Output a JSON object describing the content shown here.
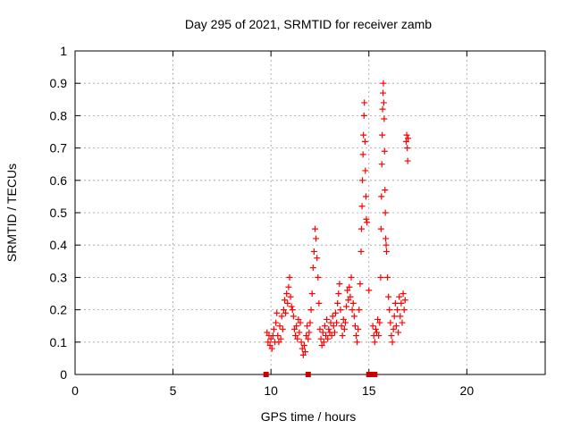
{
  "chart_data": {
    "type": "scatter",
    "title": "Day 295 of 2021, SRMTID for receiver zamb",
    "xlabel": "GPS time / hours",
    "ylabel": "SRMTID / TECUs",
    "xlim": [
      0,
      24
    ],
    "ylim": [
      0,
      1
    ],
    "xticks": [
      0,
      5,
      10,
      15,
      20
    ],
    "yticks": [
      0,
      0.1,
      0.2,
      0.3,
      0.4,
      0.5,
      0.6,
      0.7,
      0.8,
      0.9,
      1
    ],
    "xtick_labels": [
      "0",
      "5",
      "10",
      "15",
      "20"
    ],
    "ytick_labels": [
      "0",
      "0.1",
      "0.2",
      "0.3",
      "0.4",
      "0.5",
      "0.6",
      "0.7",
      "0.8",
      "0.9",
      "1"
    ],
    "grid": true,
    "marker": "+",
    "color": "#ff0000",
    "zero_marker_color": "#cc0000",
    "zero_points": [
      {
        "x": 9.75,
        "y": 0
      },
      {
        "x": 11.9,
        "y": 0
      },
      {
        "x": 15.0,
        "y": 0
      },
      {
        "x": 15.15,
        "y": 0
      },
      {
        "x": 15.3,
        "y": 0
      }
    ],
    "points": [
      {
        "x": 9.8,
        "y": 0.13
      },
      {
        "x": 9.85,
        "y": 0.1
      },
      {
        "x": 9.9,
        "y": 0.12
      },
      {
        "x": 9.95,
        "y": 0.09
      },
      {
        "x": 10.0,
        "y": 0.11
      },
      {
        "x": 10.05,
        "y": 0.08
      },
      {
        "x": 10.1,
        "y": 0.12
      },
      {
        "x": 10.15,
        "y": 0.14
      },
      {
        "x": 10.2,
        "y": 0.1
      },
      {
        "x": 10.25,
        "y": 0.16
      },
      {
        "x": 10.3,
        "y": 0.19
      },
      {
        "x": 10.35,
        "y": 0.12
      },
      {
        "x": 10.4,
        "y": 0.1
      },
      {
        "x": 10.45,
        "y": 0.15
      },
      {
        "x": 10.5,
        "y": 0.11
      },
      {
        "x": 10.55,
        "y": 0.18
      },
      {
        "x": 10.6,
        "y": 0.14
      },
      {
        "x": 10.65,
        "y": 0.2
      },
      {
        "x": 10.7,
        "y": 0.23
      },
      {
        "x": 10.75,
        "y": 0.19
      },
      {
        "x": 10.8,
        "y": 0.25
      },
      {
        "x": 10.85,
        "y": 0.22
      },
      {
        "x": 10.9,
        "y": 0.27
      },
      {
        "x": 10.95,
        "y": 0.3
      },
      {
        "x": 11.0,
        "y": 0.24
      },
      {
        "x": 11.05,
        "y": 0.21
      },
      {
        "x": 11.1,
        "y": 0.2
      },
      {
        "x": 11.15,
        "y": 0.18
      },
      {
        "x": 11.2,
        "y": 0.14
      },
      {
        "x": 11.25,
        "y": 0.12
      },
      {
        "x": 11.3,
        "y": 0.15
      },
      {
        "x": 11.35,
        "y": 0.11
      },
      {
        "x": 11.4,
        "y": 0.17
      },
      {
        "x": 11.45,
        "y": 0.13
      },
      {
        "x": 11.5,
        "y": 0.16
      },
      {
        "x": 11.55,
        "y": 0.1
      },
      {
        "x": 11.6,
        "y": 0.08
      },
      {
        "x": 11.65,
        "y": 0.06
      },
      {
        "x": 11.7,
        "y": 0.09
      },
      {
        "x": 11.75,
        "y": 0.07
      },
      {
        "x": 11.8,
        "y": 0.12
      },
      {
        "x": 11.85,
        "y": 0.15
      },
      {
        "x": 11.9,
        "y": 0.11
      },
      {
        "x": 11.95,
        "y": 0.13
      },
      {
        "x": 12.0,
        "y": 0.16
      },
      {
        "x": 12.05,
        "y": 0.2
      },
      {
        "x": 12.1,
        "y": 0.25
      },
      {
        "x": 12.15,
        "y": 0.33
      },
      {
        "x": 12.2,
        "y": 0.38
      },
      {
        "x": 12.25,
        "y": 0.45
      },
      {
        "x": 12.3,
        "y": 0.42
      },
      {
        "x": 12.35,
        "y": 0.36
      },
      {
        "x": 12.4,
        "y": 0.3
      },
      {
        "x": 12.45,
        "y": 0.22
      },
      {
        "x": 12.5,
        "y": 0.14
      },
      {
        "x": 12.55,
        "y": 0.11
      },
      {
        "x": 12.6,
        "y": 0.09
      },
      {
        "x": 12.65,
        "y": 0.13
      },
      {
        "x": 12.7,
        "y": 0.1
      },
      {
        "x": 12.75,
        "y": 0.15
      },
      {
        "x": 12.8,
        "y": 0.12
      },
      {
        "x": 12.85,
        "y": 0.17
      },
      {
        "x": 12.9,
        "y": 0.11
      },
      {
        "x": 12.95,
        "y": 0.14
      },
      {
        "x": 13.0,
        "y": 0.13
      },
      {
        "x": 13.05,
        "y": 0.16
      },
      {
        "x": 13.1,
        "y": 0.12
      },
      {
        "x": 13.15,
        "y": 0.18
      },
      {
        "x": 13.2,
        "y": 0.15
      },
      {
        "x": 13.25,
        "y": 0.13
      },
      {
        "x": 13.3,
        "y": 0.19
      },
      {
        "x": 13.35,
        "y": 0.16
      },
      {
        "x": 13.4,
        "y": 0.22
      },
      {
        "x": 13.45,
        "y": 0.25
      },
      {
        "x": 13.5,
        "y": 0.28
      },
      {
        "x": 13.55,
        "y": 0.2
      },
      {
        "x": 13.6,
        "y": 0.15
      },
      {
        "x": 13.65,
        "y": 0.12
      },
      {
        "x": 13.7,
        "y": 0.17
      },
      {
        "x": 13.75,
        "y": 0.14
      },
      {
        "x": 13.8,
        "y": 0.16
      },
      {
        "x": 13.85,
        "y": 0.21
      },
      {
        "x": 13.9,
        "y": 0.26
      },
      {
        "x": 13.95,
        "y": 0.23
      },
      {
        "x": 14.0,
        "y": 0.27
      },
      {
        "x": 14.05,
        "y": 0.24
      },
      {
        "x": 14.1,
        "y": 0.3
      },
      {
        "x": 14.15,
        "y": 0.2
      },
      {
        "x": 14.2,
        "y": 0.22
      },
      {
        "x": 14.25,
        "y": 0.18
      },
      {
        "x": 14.3,
        "y": 0.15
      },
      {
        "x": 14.35,
        "y": 0.12
      },
      {
        "x": 14.4,
        "y": 0.1
      },
      {
        "x": 14.45,
        "y": 0.14
      },
      {
        "x": 14.5,
        "y": 0.2
      },
      {
        "x": 14.55,
        "y": 0.28
      },
      {
        "x": 14.6,
        "y": 0.38
      },
      {
        "x": 14.62,
        "y": 0.45
      },
      {
        "x": 14.65,
        "y": 0.52
      },
      {
        "x": 14.67,
        "y": 0.6
      },
      {
        "x": 14.7,
        "y": 0.68
      },
      {
        "x": 14.72,
        "y": 0.74
      },
      {
        "x": 14.75,
        "y": 0.8
      },
      {
        "x": 14.77,
        "y": 0.84
      },
      {
        "x": 14.8,
        "y": 0.72
      },
      {
        "x": 14.82,
        "y": 0.63
      },
      {
        "x": 14.85,
        "y": 0.55
      },
      {
        "x": 14.87,
        "y": 0.48
      },
      {
        "x": 14.9,
        "y": 0.47
      },
      {
        "x": 15.0,
        "y": 0.26
      },
      {
        "x": 15.2,
        "y": 0.15
      },
      {
        "x": 15.25,
        "y": 0.12
      },
      {
        "x": 15.3,
        "y": 0.1
      },
      {
        "x": 15.35,
        "y": 0.14
      },
      {
        "x": 15.4,
        "y": 0.13
      },
      {
        "x": 15.45,
        "y": 0.17
      },
      {
        "x": 15.5,
        "y": 0.12
      },
      {
        "x": 15.55,
        "y": 0.16
      },
      {
        "x": 15.6,
        "y": 0.3
      },
      {
        "x": 15.62,
        "y": 0.45
      },
      {
        "x": 15.64,
        "y": 0.55
      },
      {
        "x": 15.66,
        "y": 0.65
      },
      {
        "x": 15.68,
        "y": 0.74
      },
      {
        "x": 15.7,
        "y": 0.82
      },
      {
        "x": 15.72,
        "y": 0.87
      },
      {
        "x": 15.74,
        "y": 0.9
      },
      {
        "x": 15.76,
        "y": 0.84
      },
      {
        "x": 15.78,
        "y": 0.79
      },
      {
        "x": 15.8,
        "y": 0.69
      },
      {
        "x": 15.82,
        "y": 0.57
      },
      {
        "x": 15.84,
        "y": 0.5
      },
      {
        "x": 15.86,
        "y": 0.42
      },
      {
        "x": 15.88,
        "y": 0.4
      },
      {
        "x": 15.9,
        "y": 0.38
      },
      {
        "x": 15.95,
        "y": 0.3
      },
      {
        "x": 16.0,
        "y": 0.24
      },
      {
        "x": 16.05,
        "y": 0.2
      },
      {
        "x": 16.1,
        "y": 0.16
      },
      {
        "x": 16.15,
        "y": 0.12
      },
      {
        "x": 16.2,
        "y": 0.1
      },
      {
        "x": 16.25,
        "y": 0.14
      },
      {
        "x": 16.3,
        "y": 0.18
      },
      {
        "x": 16.35,
        "y": 0.22
      },
      {
        "x": 16.4,
        "y": 0.15
      },
      {
        "x": 16.45,
        "y": 0.2
      },
      {
        "x": 16.5,
        "y": 0.13
      },
      {
        "x": 16.55,
        "y": 0.24
      },
      {
        "x": 16.6,
        "y": 0.18
      },
      {
        "x": 16.65,
        "y": 0.22
      },
      {
        "x": 16.7,
        "y": 0.16
      },
      {
        "x": 16.75,
        "y": 0.25
      },
      {
        "x": 16.8,
        "y": 0.2
      },
      {
        "x": 16.85,
        "y": 0.23
      },
      {
        "x": 16.9,
        "y": 0.72
      },
      {
        "x": 16.93,
        "y": 0.74
      },
      {
        "x": 16.96,
        "y": 0.7
      },
      {
        "x": 16.98,
        "y": 0.66
      },
      {
        "x": 17.0,
        "y": 0.73
      }
    ]
  }
}
